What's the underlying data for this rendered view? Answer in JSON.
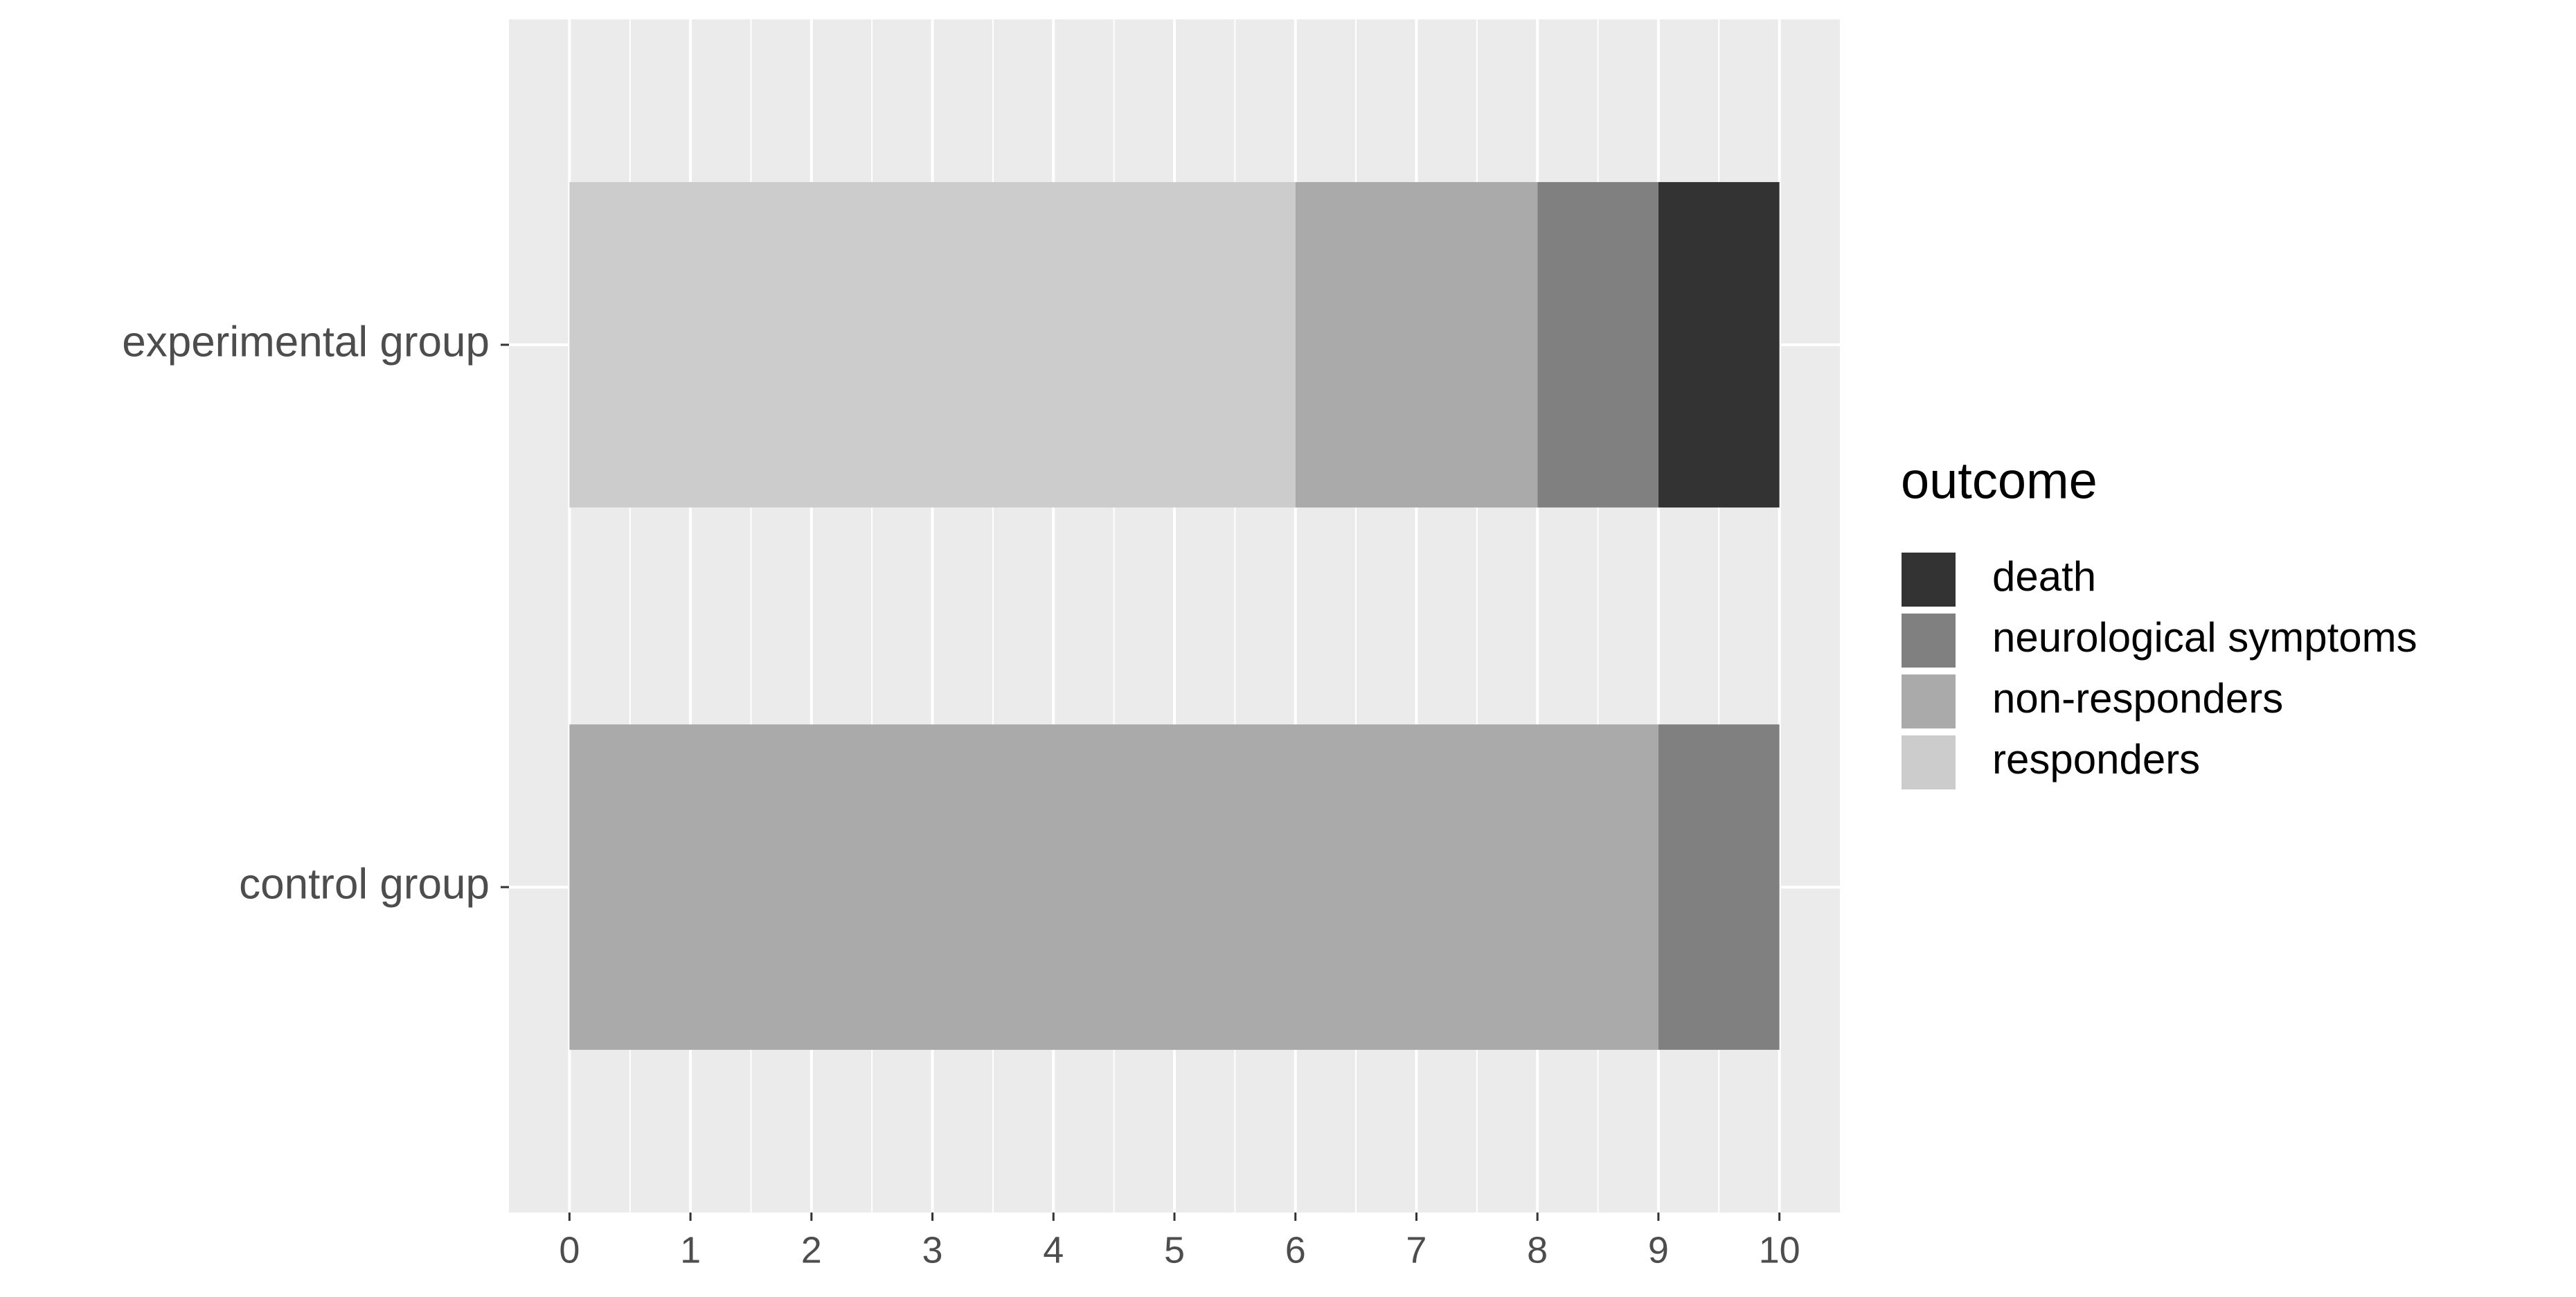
{
  "chart_data": {
    "type": "stacked-bar-horizontal",
    "categories": [
      "experimental group",
      "control group"
    ],
    "series": [
      {
        "name": "death",
        "color": "#333333",
        "values": [
          1,
          0
        ]
      },
      {
        "name": "neurological symptoms",
        "color": "#808080",
        "values": [
          1,
          1
        ]
      },
      {
        "name": "non-responders",
        "color": "#aaaaaa",
        "values": [
          2,
          9
        ]
      },
      {
        "name": "responders",
        "color": "#cccccc",
        "values": [
          6,
          0
        ]
      }
    ],
    "legend_title": "outcome",
    "xlim": [
      -0.5,
      10.5
    ],
    "xticks": [
      0,
      1,
      2,
      3,
      4,
      5,
      6,
      7,
      8,
      9,
      10
    ],
    "grid": true
  }
}
